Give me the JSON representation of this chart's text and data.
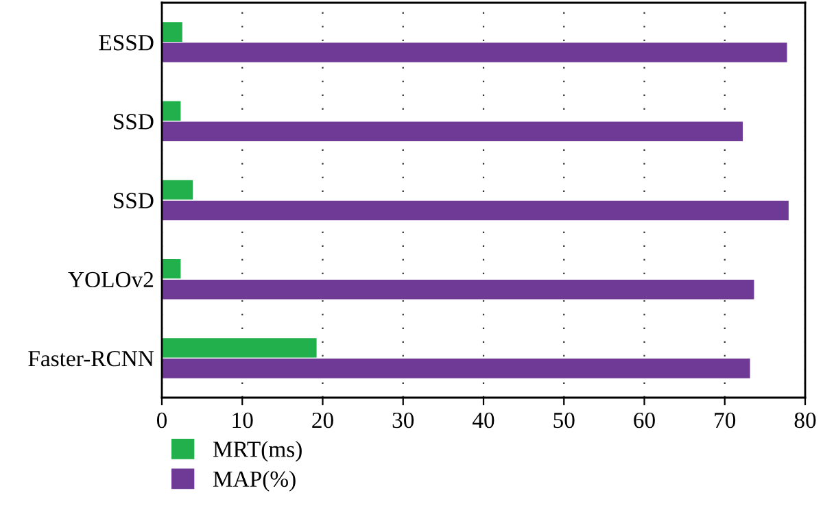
{
  "chart_data": {
    "type": "bar",
    "orientation": "horizontal",
    "categories": [
      "ESSD",
      "SSD",
      "SSD",
      "YOLOv2",
      "Faster-RCNN"
    ],
    "series": [
      {
        "name": "MRT(ms)",
        "color": "#21b04b",
        "values": [
          2.6,
          2.4,
          3.9,
          2.4,
          19.3
        ]
      },
      {
        "name": "MAP(%)",
        "color": "#6f3996",
        "values": [
          77.8,
          72.3,
          78.0,
          73.7,
          73.2
        ]
      }
    ],
    "xlim": [
      0,
      80
    ],
    "xticks": [
      0,
      10,
      20,
      30,
      40,
      50,
      60,
      70,
      80
    ],
    "grid": "x",
    "legend": "bottom left"
  }
}
